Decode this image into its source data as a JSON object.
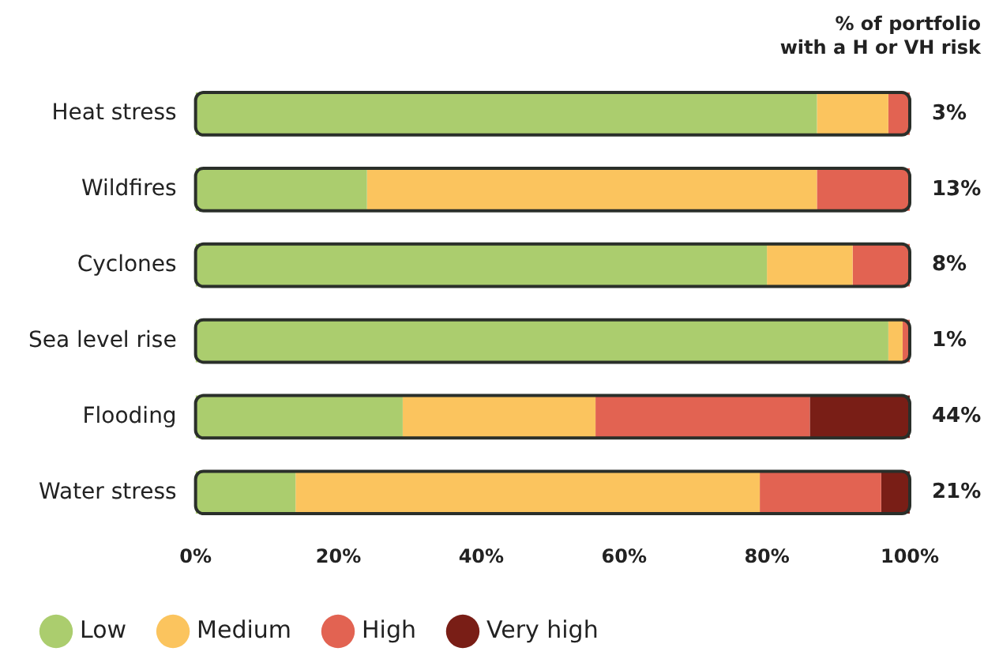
{
  "chart_data": {
    "type": "bar",
    "orientation": "horizontal",
    "stacked": true,
    "categories": [
      "Heat stress",
      "Wildfires",
      "Cyclones",
      "Sea level rise",
      "Flooding",
      "Water stress"
    ],
    "series": [
      {
        "name": "Low",
        "color": "#abcd6e",
        "values": [
          87,
          24,
          80,
          97,
          29,
          14
        ]
      },
      {
        "name": "Medium",
        "color": "#fbc45e",
        "values": [
          10,
          63,
          12,
          2,
          27,
          65
        ]
      },
      {
        "name": "High",
        "color": "#e26352",
        "values": [
          3,
          13,
          8,
          1,
          30,
          17
        ]
      },
      {
        "name": "Very high",
        "color": "#791e16",
        "values": [
          0,
          0,
          0,
          0,
          14,
          4
        ]
      }
    ],
    "xlim": [
      0,
      100
    ],
    "xticks": [
      {
        "value": 0,
        "label": "0%"
      },
      {
        "value": 20,
        "label": "20%"
      },
      {
        "value": 40,
        "label": "40%"
      },
      {
        "value": 60,
        "label": "60%"
      },
      {
        "value": 80,
        "label": "80%"
      },
      {
        "value": 100,
        "label": "100%"
      }
    ],
    "grid": false,
    "legend": "bottom",
    "annotations": [
      "% of portfolio\nwith a H or VH risk",
      "3%",
      "13%",
      "8%",
      "1%",
      "44%",
      "21%"
    ]
  }
}
